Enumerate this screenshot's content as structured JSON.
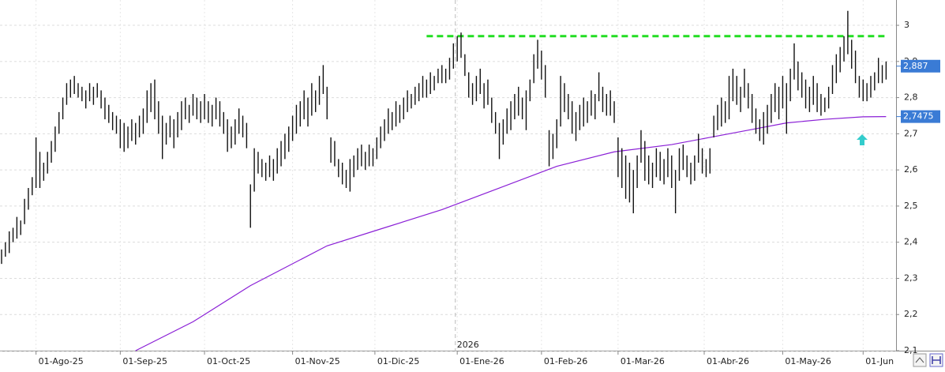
{
  "chart_data": {
    "type": "ohlc",
    "xlim": [
      -0.41,
      233.6
    ],
    "ylim": [
      2.1,
      3.07
    ],
    "yticks": [
      {
        "value": 2.1,
        "label": "2,1"
      },
      {
        "value": 2.2,
        "label": "2,2"
      },
      {
        "value": 2.3,
        "label": "2,3"
      },
      {
        "value": 2.4,
        "label": "2,4"
      },
      {
        "value": 2.5,
        "label": "2,5"
      },
      {
        "value": 2.6,
        "label": "2,6"
      },
      {
        "value": 2.7,
        "label": "2,7"
      },
      {
        "value": 2.8,
        "label": "2,8"
      },
      {
        "value": 2.9,
        "label": "2,9"
      },
      {
        "value": 3,
        "label": "3"
      }
    ],
    "xticks": [
      {
        "value": 9,
        "label": "01-Ago-25"
      },
      {
        "value": 31,
        "label": "01-Sep-25"
      },
      {
        "value": 53,
        "label": "01-Oct-25"
      },
      {
        "value": 76,
        "label": "01-Nov-25"
      },
      {
        "value": 97.5,
        "label": "01-Dic-25"
      },
      {
        "value": 119,
        "label": "01-Ene-26"
      },
      {
        "value": 141,
        "label": "01-Feb-26"
      },
      {
        "value": 161,
        "label": "01-Mar-26"
      },
      {
        "value": 183.5,
        "label": "01-Abr-26"
      },
      {
        "value": 204,
        "label": "01-May-26"
      },
      {
        "value": 225,
        "label": "01-Jun"
      }
    ],
    "year_marker": {
      "value": 118.5,
      "label": "2026"
    },
    "grid": true,
    "color": "#111111",
    "high": [
      2.38,
      2.4,
      2.43,
      2.44,
      2.47,
      2.46,
      2.52,
      2.55,
      2.58,
      2.69,
      2.65,
      2.62,
      2.65,
      2.68,
      2.72,
      2.76,
      2.8,
      2.84,
      2.85,
      2.86,
      2.84,
      2.83,
      2.82,
      2.84,
      2.83,
      2.84,
      2.82,
      2.8,
      2.78,
      2.76,
      2.75,
      2.74,
      2.73,
      2.72,
      2.74,
      2.73,
      2.75,
      2.77,
      2.82,
      2.84,
      2.85,
      2.79,
      2.75,
      2.73,
      2.75,
      2.74,
      2.76,
      2.79,
      2.8,
      2.78,
      2.81,
      2.8,
      2.79,
      2.81,
      2.79,
      2.78,
      2.8,
      2.79,
      2.76,
      2.74,
      2.72,
      2.74,
      2.77,
      2.75,
      2.73,
      2.56,
      2.66,
      2.65,
      2.63,
      2.62,
      2.64,
      2.63,
      2.66,
      2.68,
      2.7,
      2.72,
      2.75,
      2.78,
      2.79,
      2.82,
      2.8,
      2.84,
      2.82,
      2.86,
      2.89,
      2.83,
      2.69,
      2.68,
      2.63,
      2.62,
      2.6,
      2.63,
      2.64,
      2.66,
      2.67,
      2.65,
      2.67,
      2.66,
      2.69,
      2.72,
      2.74,
      2.77,
      2.76,
      2.79,
      2.78,
      2.8,
      2.82,
      2.81,
      2.83,
      2.84,
      2.86,
      2.85,
      2.87,
      2.86,
      2.88,
      2.89,
      2.88,
      2.91,
      2.95,
      2.97,
      2.98,
      2.92,
      2.87,
      2.84,
      2.86,
      2.88,
      2.84,
      2.85,
      2.8,
      2.76,
      2.73,
      2.74,
      2.77,
      2.79,
      2.81,
      2.83,
      2.8,
      2.82,
      2.85,
      2.92,
      2.96,
      2.93,
      2.89,
      2.71,
      2.7,
      2.74,
      2.86,
      2.84,
      2.81,
      2.79,
      2.76,
      2.78,
      2.8,
      2.79,
      2.82,
      2.81,
      2.87,
      2.83,
      2.81,
      2.82,
      2.79,
      2.69,
      2.66,
      2.64,
      2.62,
      2.6,
      2.64,
      2.71,
      2.68,
      2.64,
      2.62,
      2.66,
      2.65,
      2.63,
      2.66,
      2.64,
      2.6,
      2.66,
      2.67,
      2.64,
      2.62,
      2.64,
      2.7,
      2.66,
      2.63,
      2.66,
      2.75,
      2.78,
      2.8,
      2.79,
      2.86,
      2.88,
      2.86,
      2.83,
      2.88,
      2.84,
      2.81,
      2.77,
      2.74,
      2.76,
      2.78,
      2.81,
      2.84,
      2.83,
      2.86,
      2.84,
      2.88,
      2.95,
      2.9,
      2.87,
      2.85,
      2.83,
      2.86,
      2.84,
      2.81,
      2.8,
      2.83,
      2.89,
      2.92,
      2.94,
      2.97,
      3.04,
      2.96,
      2.93,
      2.86,
      2.85,
      2.84,
      2.86,
      2.87,
      2.91,
      2.89,
      2.9
    ],
    "low": [
      2.34,
      2.36,
      2.37,
      2.4,
      2.41,
      2.42,
      2.45,
      2.49,
      2.53,
      2.55,
      2.55,
      2.57,
      2.59,
      2.62,
      2.65,
      2.7,
      2.74,
      2.78,
      2.8,
      2.81,
      2.8,
      2.79,
      2.77,
      2.79,
      2.78,
      2.8,
      2.77,
      2.74,
      2.73,
      2.71,
      2.7,
      2.66,
      2.65,
      2.66,
      2.68,
      2.67,
      2.69,
      2.7,
      2.73,
      2.76,
      2.74,
      2.7,
      2.63,
      2.67,
      2.69,
      2.66,
      2.69,
      2.71,
      2.74,
      2.73,
      2.75,
      2.74,
      2.73,
      2.74,
      2.73,
      2.72,
      2.74,
      2.72,
      2.7,
      2.65,
      2.66,
      2.67,
      2.7,
      2.69,
      2.66,
      2.44,
      2.54,
      2.59,
      2.58,
      2.57,
      2.58,
      2.57,
      2.59,
      2.61,
      2.63,
      2.65,
      2.68,
      2.7,
      2.72,
      2.74,
      2.72,
      2.75,
      2.76,
      2.78,
      2.81,
      2.74,
      2.62,
      2.61,
      2.58,
      2.56,
      2.55,
      2.54,
      2.58,
      2.6,
      2.61,
      2.6,
      2.61,
      2.61,
      2.63,
      2.66,
      2.68,
      2.7,
      2.71,
      2.72,
      2.73,
      2.74,
      2.76,
      2.77,
      2.78,
      2.79,
      2.8,
      2.8,
      2.81,
      2.82,
      2.84,
      2.84,
      2.84,
      2.85,
      2.88,
      2.9,
      2.91,
      2.86,
      2.8,
      2.78,
      2.79,
      2.81,
      2.77,
      2.78,
      2.73,
      2.7,
      2.63,
      2.67,
      2.7,
      2.71,
      2.74,
      2.75,
      2.74,
      2.71,
      2.79,
      2.84,
      2.88,
      2.85,
      2.8,
      2.61,
      2.63,
      2.66,
      2.72,
      2.76,
      2.74,
      2.7,
      2.68,
      2.71,
      2.72,
      2.73,
      2.75,
      2.74,
      2.79,
      2.76,
      2.75,
      2.75,
      2.73,
      2.58,
      2.55,
      2.52,
      2.51,
      2.48,
      2.55,
      2.62,
      2.57,
      2.56,
      2.55,
      2.58,
      2.57,
      2.56,
      2.58,
      2.55,
      2.48,
      2.57,
      2.6,
      2.58,
      2.56,
      2.57,
      2.62,
      2.59,
      2.58,
      2.59,
      2.69,
      2.71,
      2.72,
      2.73,
      2.74,
      2.79,
      2.78,
      2.76,
      2.8,
      2.77,
      2.73,
      2.7,
      2.68,
      2.67,
      2.7,
      2.73,
      2.76,
      2.74,
      2.77,
      2.7,
      2.79,
      2.85,
      2.82,
      2.8,
      2.77,
      2.76,
      2.78,
      2.76,
      2.75,
      2.76,
      2.77,
      2.81,
      2.84,
      2.87,
      2.9,
      2.92,
      2.88,
      2.84,
      2.8,
      2.79,
      2.79,
      2.8,
      2.82,
      2.84,
      2.84,
      2.85
    ],
    "moving_average": {
      "color": "#8a1fd6",
      "x": [
        35,
        50,
        65,
        85,
        100,
        115,
        130,
        145,
        160,
        175,
        185,
        195,
        205,
        215,
        225,
        231
      ],
      "values": [
        2.1,
        2.18,
        2.28,
        2.39,
        2.44,
        2.49,
        2.55,
        2.61,
        2.65,
        2.67,
        2.69,
        2.71,
        2.73,
        2.74,
        2.747,
        2.7475
      ]
    },
    "resistance": {
      "color": "#22dd22",
      "x": [
        111,
        231
      ],
      "values": [
        2.97,
        2.97
      ]
    },
    "last_labels": [
      {
        "value": 2.887,
        "label": "2,887"
      },
      {
        "value": 2.7475,
        "label": "2,7475"
      }
    ]
  }
}
